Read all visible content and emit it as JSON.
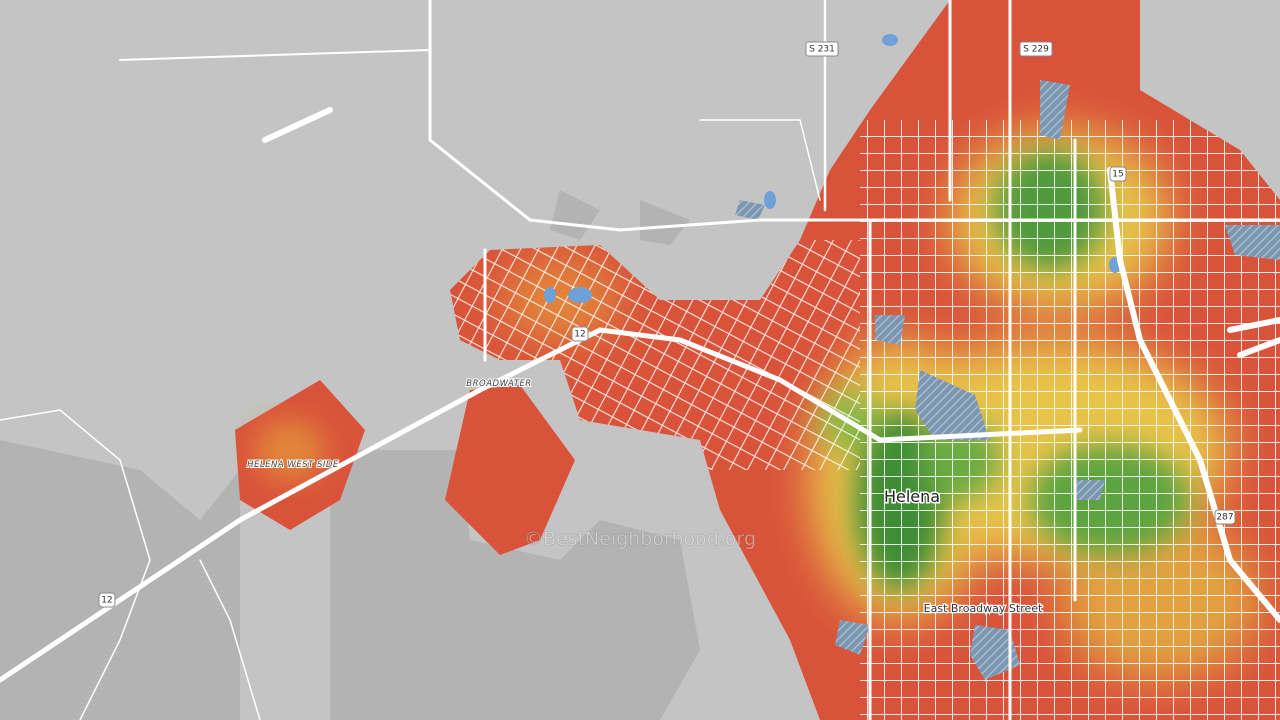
{
  "map": {
    "road_shields": [
      "S 231",
      "S 229",
      "15",
      "12",
      "12",
      "287"
    ],
    "place_labels": [
      "BROADWATER",
      "HELENA WEST SIDE",
      "Helena"
    ],
    "street_labels": [
      "East Broadway Street"
    ],
    "watermark": "©BestNeighborhood.org"
  }
}
